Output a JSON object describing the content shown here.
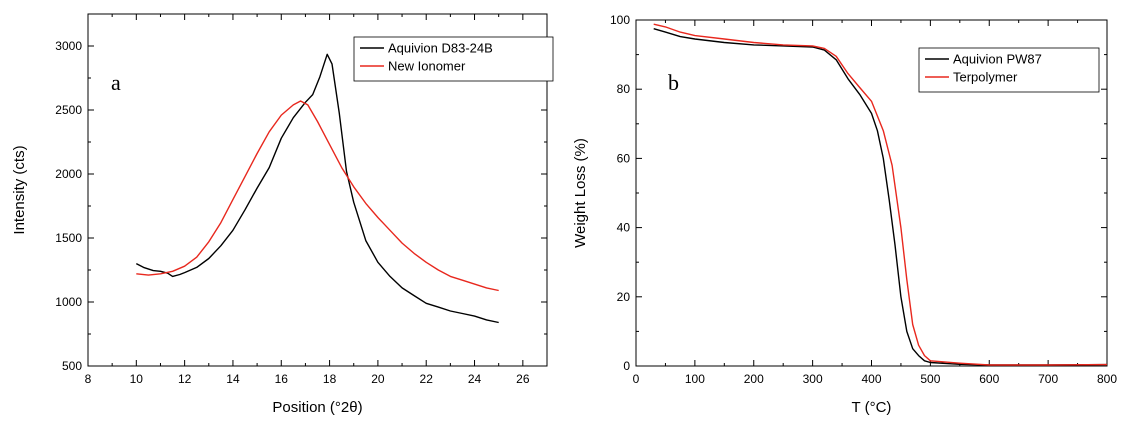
{
  "chart_data": [
    {
      "type": "line",
      "panel_label": "a",
      "xlabel": "Position (°2θ)",
      "ylabel": "Intensity (cts)",
      "xlim": [
        8,
        27
      ],
      "ylim": [
        500,
        3250
      ],
      "x_ticks": [
        8,
        10,
        12,
        14,
        16,
        18,
        20,
        22,
        24,
        26
      ],
      "y_ticks": [
        500,
        1000,
        1500,
        2000,
        2500,
        3000
      ],
      "legend": "top-right",
      "grid": false,
      "series": [
        {
          "name": "Aquivion D83-24B",
          "color": "#000000",
          "points": [
            [
              10,
              1300
            ],
            [
              10.3,
              1270
            ],
            [
              10.7,
              1245
            ],
            [
              11.0,
              1240
            ],
            [
              11.3,
              1225
            ],
            [
              11.5,
              1200
            ],
            [
              11.8,
              1215
            ],
            [
              12.0,
              1230
            ],
            [
              12.5,
              1270
            ],
            [
              13.0,
              1340
            ],
            [
              13.5,
              1440
            ],
            [
              14.0,
              1560
            ],
            [
              14.5,
              1720
            ],
            [
              15.0,
              1890
            ],
            [
              15.5,
              2050
            ],
            [
              16.0,
              2280
            ],
            [
              16.5,
              2440
            ],
            [
              17.0,
              2560
            ],
            [
              17.3,
              2620
            ],
            [
              17.6,
              2760
            ],
            [
              17.9,
              2935
            ],
            [
              18.1,
              2860
            ],
            [
              18.4,
              2480
            ],
            [
              18.7,
              2020
            ],
            [
              19.0,
              1780
            ],
            [
              19.5,
              1480
            ],
            [
              20.0,
              1310
            ],
            [
              20.5,
              1200
            ],
            [
              21.0,
              1110
            ],
            [
              21.5,
              1050
            ],
            [
              22.0,
              990
            ],
            [
              22.5,
              960
            ],
            [
              23.0,
              930
            ],
            [
              23.5,
              910
            ],
            [
              24.0,
              890
            ],
            [
              24.5,
              860
            ],
            [
              25.0,
              840
            ]
          ]
        },
        {
          "name": "New Ionomer",
          "color": "#e8281e",
          "points": [
            [
              10,
              1220
            ],
            [
              10.5,
              1210
            ],
            [
              11.0,
              1220
            ],
            [
              11.5,
              1240
            ],
            [
              12.0,
              1280
            ],
            [
              12.5,
              1350
            ],
            [
              13.0,
              1470
            ],
            [
              13.5,
              1620
            ],
            [
              14.0,
              1800
            ],
            [
              14.5,
              1980
            ],
            [
              15.0,
              2160
            ],
            [
              15.5,
              2330
            ],
            [
              16.0,
              2460
            ],
            [
              16.5,
              2540
            ],
            [
              16.8,
              2570
            ],
            [
              17.1,
              2540
            ],
            [
              17.5,
              2410
            ],
            [
              18.0,
              2230
            ],
            [
              18.5,
              2050
            ],
            [
              19.0,
              1900
            ],
            [
              19.5,
              1770
            ],
            [
              20.0,
              1660
            ],
            [
              20.5,
              1560
            ],
            [
              21.0,
              1460
            ],
            [
              21.5,
              1380
            ],
            [
              22.0,
              1310
            ],
            [
              22.5,
              1250
            ],
            [
              23.0,
              1200
            ],
            [
              23.5,
              1170
            ],
            [
              24.0,
              1140
            ],
            [
              24.5,
              1110
            ],
            [
              25.0,
              1090
            ]
          ]
        }
      ]
    },
    {
      "type": "line",
      "panel_label": "b",
      "xlabel": "T (°C)",
      "ylabel": "Weight Loss (%)",
      "xlim": [
        0,
        800
      ],
      "ylim": [
        0,
        100
      ],
      "x_ticks": [
        0,
        100,
        200,
        300,
        400,
        500,
        600,
        700,
        800
      ],
      "y_ticks": [
        0,
        20,
        40,
        60,
        80,
        100
      ],
      "legend": "top-right",
      "grid": false,
      "series": [
        {
          "name": "Aquivion PW87",
          "color": "#000000",
          "points": [
            [
              30,
              97.5
            ],
            [
              50,
              96.5
            ],
            [
              75,
              95.2
            ],
            [
              100,
              94.5
            ],
            [
              150,
              93.5
            ],
            [
              200,
              92.8
            ],
            [
              250,
              92.5
            ],
            [
              300,
              92.2
            ],
            [
              320,
              91.3
            ],
            [
              340,
              88.5
            ],
            [
              360,
              83.0
            ],
            [
              380,
              78.5
            ],
            [
              400,
              73.0
            ],
            [
              410,
              68.0
            ],
            [
              420,
              60.0
            ],
            [
              430,
              48.0
            ],
            [
              440,
              35.0
            ],
            [
              450,
              20.0
            ],
            [
              460,
              10.0
            ],
            [
              470,
              5.0
            ],
            [
              480,
              3.0
            ],
            [
              490,
              1.5
            ],
            [
              500,
              1.0
            ],
            [
              550,
              0.5
            ],
            [
              600,
              0.3
            ],
            [
              700,
              0.3
            ],
            [
              800,
              0.4
            ]
          ]
        },
        {
          "name": "Terpolymer",
          "color": "#e8281e",
          "points": [
            [
              30,
              98.8
            ],
            [
              50,
              98.0
            ],
            [
              75,
              96.5
            ],
            [
              100,
              95.5
            ],
            [
              150,
              94.5
            ],
            [
              200,
              93.5
            ],
            [
              250,
              92.8
            ],
            [
              300,
              92.5
            ],
            [
              320,
              91.8
            ],
            [
              340,
              89.5
            ],
            [
              360,
              84.5
            ],
            [
              380,
              80.5
            ],
            [
              400,
              76.5
            ],
            [
              420,
              68.0
            ],
            [
              435,
              58.0
            ],
            [
              450,
              40.0
            ],
            [
              460,
              25.0
            ],
            [
              470,
              12.0
            ],
            [
              480,
              6.0
            ],
            [
              490,
              3.0
            ],
            [
              500,
              1.5
            ],
            [
              550,
              0.8
            ],
            [
              600,
              0.3
            ],
            [
              700,
              0.3
            ],
            [
              800,
              0.4
            ]
          ]
        }
      ]
    }
  ]
}
